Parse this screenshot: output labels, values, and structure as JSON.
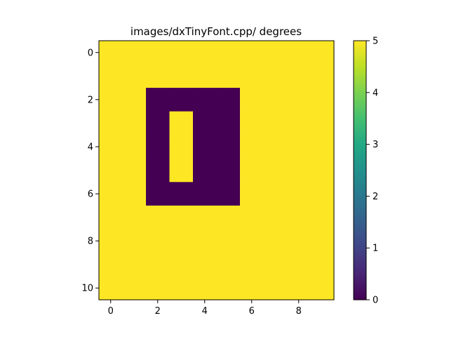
{
  "chart_data": {
    "type": "heatmap",
    "title": "images/dxTinyFont.cpp/ degrees",
    "xlabel": "",
    "ylabel": "",
    "rows": 11,
    "cols": 10,
    "values": [
      [
        5,
        5,
        5,
        5,
        5,
        5,
        5,
        5,
        5,
        5
      ],
      [
        5,
        5,
        5,
        5,
        5,
        5,
        5,
        5,
        5,
        5
      ],
      [
        5,
        5,
        0,
        0,
        0,
        0,
        5,
        5,
        5,
        5
      ],
      [
        5,
        5,
        0,
        5,
        0,
        0,
        5,
        5,
        5,
        5
      ],
      [
        5,
        5,
        0,
        5,
        0,
        0,
        5,
        5,
        5,
        5
      ],
      [
        5,
        5,
        0,
        5,
        0,
        0,
        5,
        5,
        5,
        5
      ],
      [
        5,
        5,
        0,
        0,
        0,
        0,
        5,
        5,
        5,
        5
      ],
      [
        5,
        5,
        5,
        5,
        5,
        5,
        5,
        5,
        5,
        5
      ],
      [
        5,
        5,
        5,
        5,
        5,
        5,
        5,
        5,
        5,
        5
      ],
      [
        5,
        5,
        5,
        5,
        5,
        5,
        5,
        5,
        5,
        5
      ],
      [
        5,
        5,
        5,
        5,
        5,
        5,
        5,
        5,
        5,
        5
      ]
    ],
    "xlim": [
      -0.5,
      9.5
    ],
    "ylim": [
      10.5,
      -0.5
    ],
    "x_ticks": [
      0,
      2,
      4,
      6,
      8
    ],
    "y_ticks": [
      0,
      2,
      4,
      6,
      8,
      10
    ],
    "x_tick_labels": [
      "0",
      "2",
      "4",
      "6",
      "8"
    ],
    "y_tick_labels": [
      "0",
      "2",
      "4",
      "6",
      "8",
      "10"
    ],
    "colormap": "viridis",
    "colorbar": {
      "min": 0,
      "max": 5,
      "ticks": [
        0,
        1,
        2,
        3,
        4,
        5
      ],
      "tick_labels": [
        "0",
        "1",
        "2",
        "3",
        "4",
        "5"
      ]
    },
    "grid": false,
    "legend": "none"
  }
}
